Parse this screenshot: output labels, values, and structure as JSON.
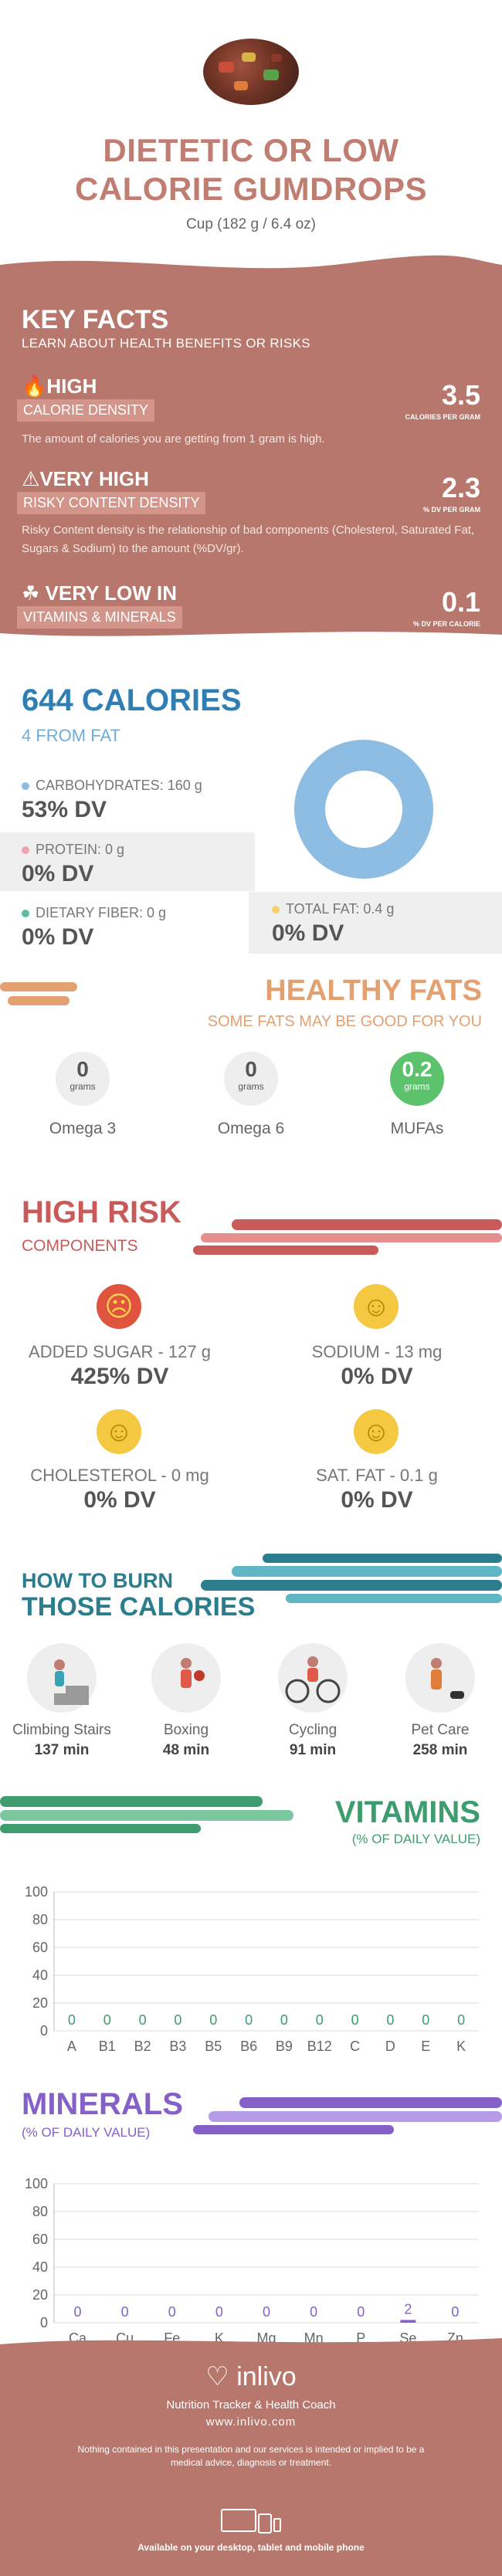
{
  "header": {
    "title_line1": "DIETETIC OR LOW",
    "title_line2": "CALORIE GUMDROPS",
    "serving": "Cup (182 g / 6.4 oz)"
  },
  "key_facts": {
    "title": "KEY FACTS",
    "subtitle": "LEARN ABOUT HEALTH BENEFITS OR RISKS",
    "calorie_density": {
      "level": "HIGH",
      "label": "CALORIE DENSITY",
      "value": "3.5",
      "unit": "CALORIES PER GRAM",
      "description": "The amount of calories you are getting from 1 gram is high."
    },
    "risky_content": {
      "level": "VERY HIGH",
      "label": "RISKY CONTENT DENSITY",
      "value": "2.3",
      "unit": "% DV PER GRAM",
      "description": "Risky Content density is the relationship of bad components (Cholesterol, Saturated Fat, Sugars & Sodium) to the amount (%DV/gr)."
    },
    "vitamins_minerals": {
      "level": "VERY LOW  IN",
      "label": "VITAMINS & MINERALS",
      "value": "0.1",
      "unit": "% DV PER CALORIE"
    }
  },
  "calories": {
    "title": "644 CALORIES",
    "from_fat": "4 FROM FAT",
    "carbs_label": "CARBOHYDRATES: 160 g",
    "carbs_dv": "53% DV",
    "protein_label": "PROTEIN: 0 g",
    "protein_dv": "0% DV",
    "fiber_label": "DIETARY FIBER: 0 g",
    "fiber_dv": "0% DV",
    "fat_label": "TOTAL FAT: 0.4 g",
    "fat_dv": "0% DV",
    "colors": {
      "carbs": "#8dbde3",
      "protein": "#f2a3b0",
      "fiber": "#5fbf9a",
      "fat": "#f5cf6a"
    }
  },
  "healthy_fats": {
    "title": "HEALTHY FATS",
    "subtitle": "SOME FATS MAY BE GOOD FOR YOU",
    "items": [
      {
        "value": "0",
        "unit": "grams",
        "name": "Omega 3"
      },
      {
        "value": "0",
        "unit": "grams",
        "name": "Omega 6"
      },
      {
        "value": "0.2",
        "unit": "grams",
        "name": "MUFAs"
      }
    ]
  },
  "high_risk": {
    "title": "HIGH RISK",
    "subtitle": "COMPONENTS",
    "items": [
      {
        "label": "ADDED SUGAR - 127 g",
        "dv": "425% DV",
        "icon": "sad-face-icon"
      },
      {
        "label": "SODIUM - 13 mg",
        "dv": "0% DV",
        "icon": "happy-face-icon"
      },
      {
        "label": "CHOLESTEROL - 0 mg",
        "dv": "0% DV",
        "icon": "happy-face-icon"
      },
      {
        "label": "SAT. FAT - 0.1 g",
        "dv": "0% DV",
        "icon": "happy-face-icon"
      }
    ]
  },
  "burn": {
    "title_line1": "HOW TO BURN",
    "title_line2": "THOSE CALORIES",
    "activities": [
      {
        "name": "Climbing Stairs",
        "minutes": "137 min",
        "icon": "climbing-stairs-icon"
      },
      {
        "name": "Boxing",
        "minutes": "48 min",
        "icon": "boxing-icon"
      },
      {
        "name": "Cycling",
        "minutes": "91 min",
        "icon": "cycling-icon"
      },
      {
        "name": "Pet Care",
        "minutes": "258 min",
        "icon": "pet-care-icon"
      }
    ]
  },
  "chart_data": [
    {
      "type": "bar",
      "title": "VITAMINS",
      "subtitle": "(% OF DAILY VALUE)",
      "categories": [
        "A",
        "B1",
        "B2",
        "B3",
        "B5",
        "B6",
        "B9",
        "B12",
        "C",
        "D",
        "E",
        "K"
      ],
      "values": [
        0,
        0,
        0,
        0,
        0,
        0,
        0,
        0,
        0,
        0,
        0,
        0
      ],
      "ylim": [
        0,
        100
      ],
      "yticks": [
        0,
        20,
        40,
        60,
        80,
        100
      ],
      "color": "#3e9d6f",
      "grid": true
    },
    {
      "type": "bar",
      "title": "MINERALS",
      "subtitle": "(% OF DAILY VALUE)",
      "categories": [
        "Ca",
        "Cu",
        "Fe",
        "K",
        "Mg",
        "Mn",
        "P",
        "Se",
        "Zn"
      ],
      "values": [
        0,
        0,
        0,
        0,
        0,
        0,
        0,
        2,
        0
      ],
      "ylim": [
        0,
        100
      ],
      "yticks": [
        0,
        20,
        40,
        60,
        80,
        100
      ],
      "color": "#8560c8",
      "grid": true
    }
  ],
  "footer": {
    "brand": "inlivo",
    "tagline": "Nutrition Tracker & Health Coach",
    "url": "www.inlivo.com",
    "disclaimer": "Nothing contained in this presentation and our services is intended or implied to be a medical advice, diagnosis or treatment.",
    "available": "Available on your desktop, tablet and mobile phone"
  }
}
